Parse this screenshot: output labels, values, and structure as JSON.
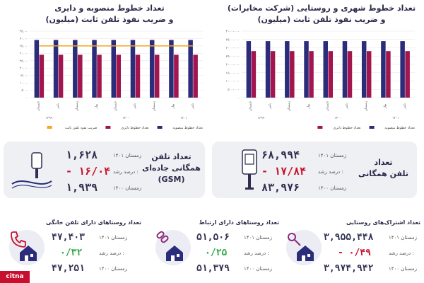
{
  "chart_data": [
    {
      "type": "bar",
      "title": "تعداد خطوط شهری و روستایی (شرکت مخابرات)\nو ضریب نفوذ تلفن ثابت (میلیون)",
      "categories": [
        "تابستان",
        "پاییز",
        "زمستان",
        "بهار",
        "تابستان",
        "پاییز",
        "زمستان",
        "بهار",
        "پاییز"
      ],
      "group_labels": [
        "۱۳۹۹",
        "۱۴۰۰",
        "۱۴۰۱"
      ],
      "y_ticks": [
        "۴۰۰۰۰۰۰۰",
        "۳۵۰۰۰۰۰۰",
        "۳۰۰۰۰۰۰۰",
        "۲۵۰۰۰۰۰۰",
        "۲۰۰۰۰۰۰۰",
        "۱۵۰۰۰۰۰۰",
        "۱۰۰۰۰۰۰۰",
        "۵۰۰۰۰۰۰",
        "۰"
      ],
      "ylim": [
        0,
        40000000
      ],
      "series": [
        {
          "name": "تعداد خطوط منصوبه",
          "color": "#2b2d7a",
          "values": [
            34000000,
            34000000,
            34000000,
            34000000,
            34000000,
            34000000,
            34000000,
            34000000,
            34000000
          ]
        },
        {
          "name": "تعداد خطوط دایری",
          "color": "#a3154e",
          "values": [
            28000000,
            28000000,
            28000000,
            28000000,
            28000000,
            28000000,
            28000000,
            28000000,
            28000000
          ]
        }
      ]
    },
    {
      "type": "bar",
      "title": "تعداد خطوط منصوبه و دایری\nو ضریب نفوذ تلفن ثابت (میلیون)",
      "categories": [
        "تابستان",
        "پاییز",
        "زمستان",
        "بهار",
        "تابستان",
        "پاییز",
        "زمستان",
        "بهار",
        "پاییز"
      ],
      "group_labels": [
        "۱۳۹۹",
        "۱۴۰۰",
        "۱۴۰۱"
      ],
      "y_ticks": [
        "۴۵.۰۰",
        "۴۰.۰۰",
        "۳۵.۰۰",
        "۳۰.۰۰",
        "۲۵.۰۰",
        "۲۰.۰۰",
        "۱۵.۰۰",
        "۱۰.۰۰",
        "۵.۰۰",
        "۰"
      ],
      "ylim": [
        0,
        45
      ],
      "series": [
        {
          "name": "تعداد خطوط منصوبه",
          "color": "#2b2d7a",
          "values": [
            39,
            39,
            39,
            39,
            39,
            39,
            39,
            39,
            39
          ]
        },
        {
          "name": "تعداد خطوط دایری",
          "color": "#a3154e",
          "values": [
            29,
            29,
            29,
            29,
            29,
            29,
            29,
            29,
            29
          ]
        },
        {
          "name": "ضریب نفوذ تلفن ثابت",
          "color": "#f5a623",
          "type": "line",
          "values": [
            35,
            35,
            35,
            35,
            35,
            35,
            35,
            35,
            35
          ]
        }
      ]
    }
  ],
  "cards": {
    "public": {
      "title": "تعداد\nتلفن همگانی",
      "winter1401_label": "زمستان ۱۴۰۱",
      "winter1401_value": "۶۸,۹۹۴",
      "growth_label": "درصد رشد :",
      "growth_value": "- ۱۷/۸۴",
      "winter1400_label": "زمستان ۱۴۰۰",
      "winter1400_value": "۸۳,۹۷۶"
    },
    "gsm": {
      "title": "تعداد تلفن\nهمگانی جاده‌ای\n(GSM)",
      "winter1401_label": "زمستان ۱۴۰۱",
      "winter1401_value": "۱,۶۲۸",
      "growth_label": "درصد رشد :",
      "growth_value": "- ۱۶/۰۴",
      "winter1400_label": "زمستان ۱۴۰۰",
      "winter1400_value": "۱,۹۳۹"
    }
  },
  "sections": {
    "rural_subs": {
      "title": "تعداد اشتراک‌های روستایی",
      "v1_label": "زمستان ۱۴۰۱",
      "v1": "۳,۹۵۵,۴۴۸",
      "g_label": "درصد رشد :",
      "g": "- ۰/۴۹",
      "v2_label": "زمستان ۱۴۰۰",
      "v2": "۳,۹۷۴,۹۴۲"
    },
    "connected_villages": {
      "title": "تعداد روستاهای دارای ارتباط",
      "v1_label": "زمستان ۱۴۰۱",
      "v1": "۵۱,۵۰۶",
      "g_label": "درصد رشد :",
      "g": "۰/۲۵",
      "v2_label": "زمستان ۱۴۰۰",
      "v2": "۵۱,۳۷۹"
    },
    "home_phone_villages": {
      "title": "تعداد روستاهای دارای تلفن خانگی",
      "v1_label": "زمستان ۱۴۰۱",
      "v1": "۴۷,۴۰۳",
      "g_label": "درصد رشد :",
      "g": "۰/۳۲",
      "v2_label": "زمستان ۱۴۰۰",
      "v2": "۴۷,۲۵۱"
    }
  },
  "brand": "citna"
}
